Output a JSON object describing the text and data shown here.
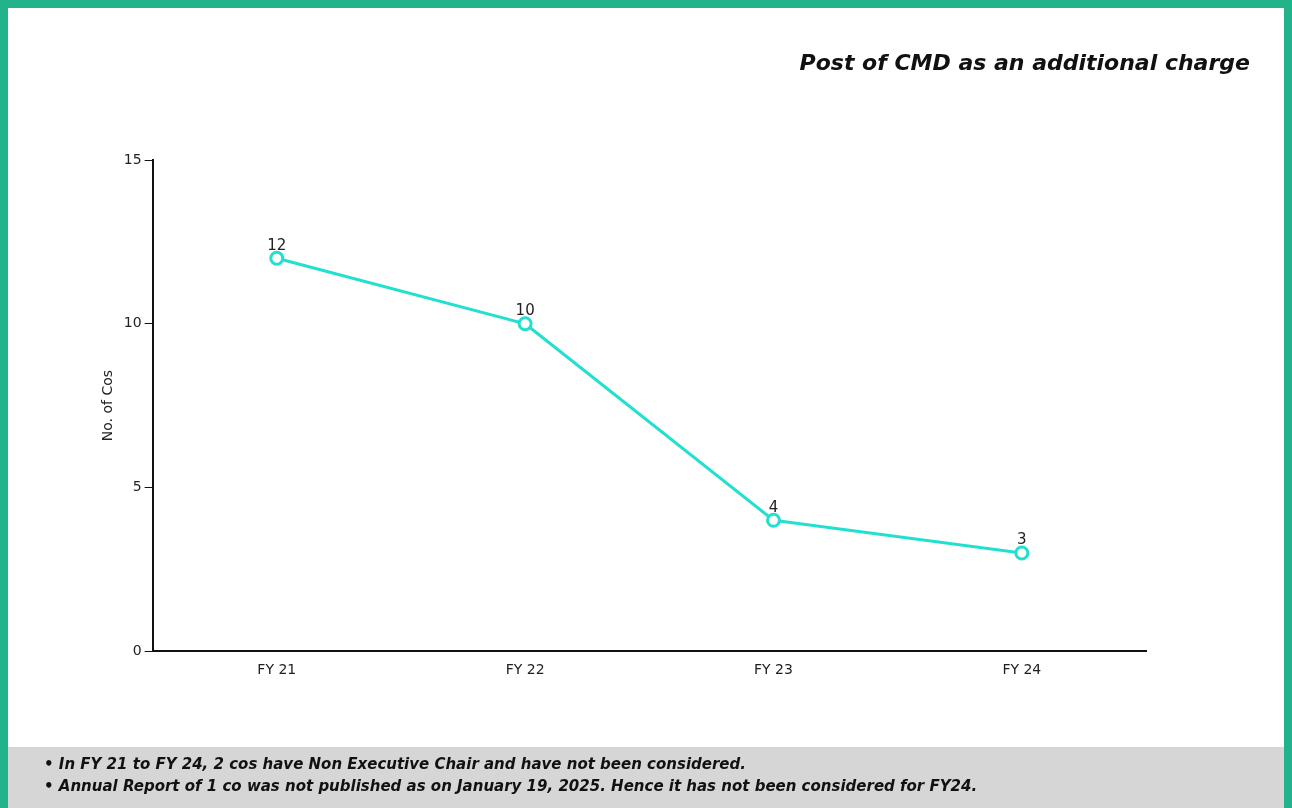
{
  "chart_data": {
    "type": "line",
    "title": "Post of CMD as an additional charge",
    "ylabel": "No. of Cos",
    "categories": [
      "FY 21",
      "FY 22",
      "FY 23",
      "FY 24"
    ],
    "series": [
      {
        "color": "#22e0d0",
        "values": [
          12,
          10,
          4,
          3
        ]
      }
    ],
    "ylim": [
      0,
      15
    ],
    "yticks": [
      0,
      5,
      10,
      15
    ],
    "grid": false,
    "legend": false,
    "marker": "circle",
    "line_style": "solid",
    "data_labels": true,
    "annotations": [
      "• In FY 21 to FY 24, 2 cos have Non Executive Chair and have not been considered.",
      "• Annual Report of 1 co was not published as on January 19, 2025. Hence it has not been considered for FY24."
    ]
  }
}
